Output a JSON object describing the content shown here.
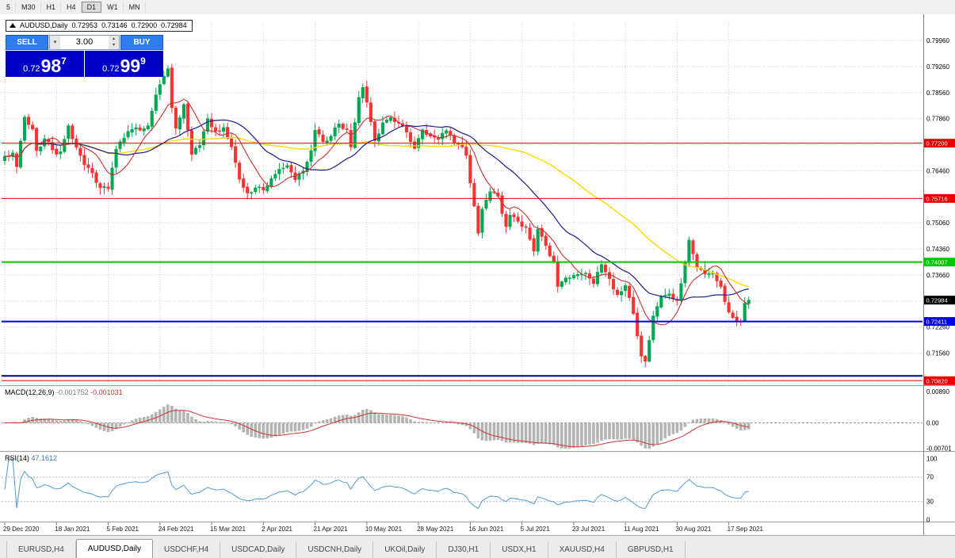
{
  "toolbar": {
    "timeframes": [
      {
        "label": "5"
      },
      {
        "label": "M30"
      },
      {
        "label": "H1"
      },
      {
        "label": "H4"
      },
      {
        "label": "D1",
        "active": true
      },
      {
        "label": "W1"
      },
      {
        "label": "MN"
      }
    ]
  },
  "ohlc_bar": {
    "symbol": "AUDUSD,Daily",
    "open": "0.72953",
    "high": "0.73146",
    "low": "0.72900",
    "close": "0.72984"
  },
  "trade_panel": {
    "sell_label": "SELL",
    "buy_label": "BUY",
    "volume": "3.00",
    "sell_price": {
      "prefix": "0.72",
      "big": "98",
      "sup": "7"
    },
    "buy_price": {
      "prefix": "0.72",
      "big": "99",
      "sup": "9"
    }
  },
  "colors": {
    "trade_button": "#2e7cf0",
    "trade_button_border": "#1a5ac8",
    "price_panel": "#0000c8",
    "candle_up": "#00a651",
    "candle_down": "#fa3232"
  },
  "chart_data": {
    "type": "candlestick",
    "symbol": "AUDUSD",
    "timeframe": "Daily",
    "days": 188,
    "label_step_days": 13,
    "x_labels": [
      "29 Dec 2020",
      "18 Jan 2021",
      "5 Feb 2021",
      "24 Feb 2021",
      "15 Mar 2021",
      "2 Apr 2021",
      "21 Apr 2021",
      "10 May 2021",
      "28 May 2021",
      "16 Jun 2021",
      "5 Jul 2021",
      "23 Jul 2021",
      "11 Aug 2021",
      "30 Aug 2021",
      "17 Sep 2021"
    ],
    "range": {
      "top": 0.8045,
      "bottom": 0.7072
    },
    "grid_prices": [
      0.7996,
      0.7926,
      0.7856,
      0.7786,
      0.7716,
      0.7646,
      0.7576,
      0.7506,
      0.7436,
      0.7366,
      0.7296,
      0.7226,
      0.7156,
      0.7086
    ],
    "axis_ticks_visible": [
      "0.79960",
      "0.79260",
      "0.78560",
      "0.77860",
      "0.76460",
      "0.75060",
      "0.74360",
      "0.73660",
      "0.72260",
      "0.71560"
    ],
    "levels": [
      {
        "label": "0.77200",
        "price": 0.772,
        "color": "#e80000",
        "width": 1
      },
      {
        "label": "0.75716",
        "price": 0.75716,
        "color": "#e80000",
        "width": 1
      },
      {
        "label": "0.74007",
        "price": 0.74007,
        "color": "#00c800",
        "width": 2
      },
      {
        "label": "0.72411",
        "price": 0.72411,
        "color": "#0000e8",
        "width": 2
      },
      {
        "price": 0.7095,
        "color": "#000080",
        "width": 2
      },
      {
        "label": "0.70820",
        "price": 0.7082,
        "color": "#e80000",
        "width": 1
      }
    ],
    "current_price": {
      "label": "0.72984",
      "value": 0.72984,
      "bg": "#000000"
    },
    "mas": [
      {
        "period": 55,
        "color": "#ffd700",
        "width": 1.4
      },
      {
        "period": 24,
        "color": "#1c1c8c",
        "width": 1.2
      },
      {
        "period": 9,
        "color": "#c83232",
        "width": 1.1
      }
    ],
    "close_anchors": [
      [
        0,
        0.7685
      ],
      [
        2,
        0.7694
      ],
      [
        3,
        0.7657
      ],
      [
        5,
        0.779
      ],
      [
        7,
        0.7758
      ],
      [
        8,
        0.77
      ],
      [
        10,
        0.7732
      ],
      [
        12,
        0.7702
      ],
      [
        13,
        0.769
      ],
      [
        14,
        0.7697
      ],
      [
        16,
        0.7767
      ],
      [
        18,
        0.7709
      ],
      [
        20,
        0.7662
      ],
      [
        22,
        0.764
      ],
      [
        24,
        0.76
      ],
      [
        26,
        0.7598
      ],
      [
        28,
        0.7704
      ],
      [
        30,
        0.7734
      ],
      [
        32,
        0.7757
      ],
      [
        34,
        0.7755
      ],
      [
        36,
        0.7767
      ],
      [
        38,
        0.785
      ],
      [
        40,
        0.79
      ],
      [
        41,
        0.792
      ],
      [
        42,
        0.7815
      ],
      [
        43,
        0.776
      ],
      [
        45,
        0.7824
      ],
      [
        47,
        0.769
      ],
      [
        49,
        0.7714
      ],
      [
        51,
        0.7786
      ],
      [
        53,
        0.7752
      ],
      [
        55,
        0.7762
      ],
      [
        57,
        0.771
      ],
      [
        59,
        0.7623
      ],
      [
        61,
        0.7586
      ],
      [
        63,
        0.76
      ],
      [
        65,
        0.7594
      ],
      [
        67,
        0.7625
      ],
      [
        69,
        0.765
      ],
      [
        71,
        0.766
      ],
      [
        73,
        0.7622
      ],
      [
        75,
        0.7645
      ],
      [
        77,
        0.77
      ],
      [
        78,
        0.7755
      ],
      [
        80,
        0.7724
      ],
      [
        82,
        0.7739
      ],
      [
        84,
        0.7772
      ],
      [
        86,
        0.7756
      ],
      [
        87,
        0.771
      ],
      [
        89,
        0.7843
      ],
      [
        90,
        0.787
      ],
      [
        91,
        0.783
      ],
      [
        93,
        0.7727
      ],
      [
        95,
        0.7775
      ],
      [
        97,
        0.7789
      ],
      [
        99,
        0.7775
      ],
      [
        101,
        0.775
      ],
      [
        103,
        0.7706
      ],
      [
        105,
        0.7756
      ],
      [
        107,
        0.7739
      ],
      [
        109,
        0.773
      ],
      [
        111,
        0.7754
      ],
      [
        113,
        0.772
      ],
      [
        115,
        0.771
      ],
      [
        116,
        0.7687
      ],
      [
        118,
        0.7551
      ],
      [
        119,
        0.7478
      ],
      [
        120,
        0.7543
      ],
      [
        122,
        0.759
      ],
      [
        124,
        0.7578
      ],
      [
        126,
        0.7496
      ],
      [
        127,
        0.7527
      ],
      [
        129,
        0.751
      ],
      [
        131,
        0.7494
      ],
      [
        133,
        0.743
      ],
      [
        134,
        0.7489
      ],
      [
        136,
        0.7445
      ],
      [
        138,
        0.7401
      ],
      [
        139,
        0.7335
      ],
      [
        141,
        0.7358
      ],
      [
        143,
        0.7365
      ],
      [
        146,
        0.7371
      ],
      [
        148,
        0.7343
      ],
      [
        150,
        0.7394
      ],
      [
        152,
        0.7356
      ],
      [
        154,
        0.7313
      ],
      [
        156,
        0.7338
      ],
      [
        158,
        0.7262
      ],
      [
        160,
        0.7148
      ],
      [
        161,
        0.7134
      ],
      [
        163,
        0.7256
      ],
      [
        165,
        0.7309
      ],
      [
        167,
        0.7315
      ],
      [
        169,
        0.7297
      ],
      [
        171,
        0.74
      ],
      [
        172,
        0.746
      ],
      [
        174,
        0.7386
      ],
      [
        176,
        0.7369
      ],
      [
        178,
        0.7371
      ],
      [
        180,
        0.7335
      ],
      [
        181,
        0.7294
      ],
      [
        183,
        0.7251
      ],
      [
        185,
        0.724
      ],
      [
        186,
        0.729
      ],
      [
        187,
        0.72984
      ]
    ],
    "macd": {
      "label": "MACD(12,26,9)",
      "main_value": "-0.001752",
      "signal_value": "-0.001031",
      "hist_color": "#b4b4b4",
      "signal_color": "#d23232",
      "axis_labels": [
        "0.00890",
        "0.00",
        "-0.00701"
      ]
    },
    "rsi": {
      "label": "RSI(14)",
      "value": "47.1612",
      "line_color": "#4f9bd2",
      "levels": [
        30,
        70
      ],
      "axis_labels": [
        "100",
        "70",
        "30",
        "0"
      ]
    }
  },
  "tabs": [
    {
      "label": "EURUSD,H4"
    },
    {
      "label": "AUDUSD,Daily",
      "active": true
    },
    {
      "label": "USDCHF,H4"
    },
    {
      "label": "USDCAD,Daily"
    },
    {
      "label": "USDCNH,Daily"
    },
    {
      "label": "UKOil,Daily"
    },
    {
      "label": "DJ30,H1"
    },
    {
      "label": "USDX,H1"
    },
    {
      "label": "XAUUSD,H4"
    },
    {
      "label": "GBPUSD,H1"
    }
  ]
}
